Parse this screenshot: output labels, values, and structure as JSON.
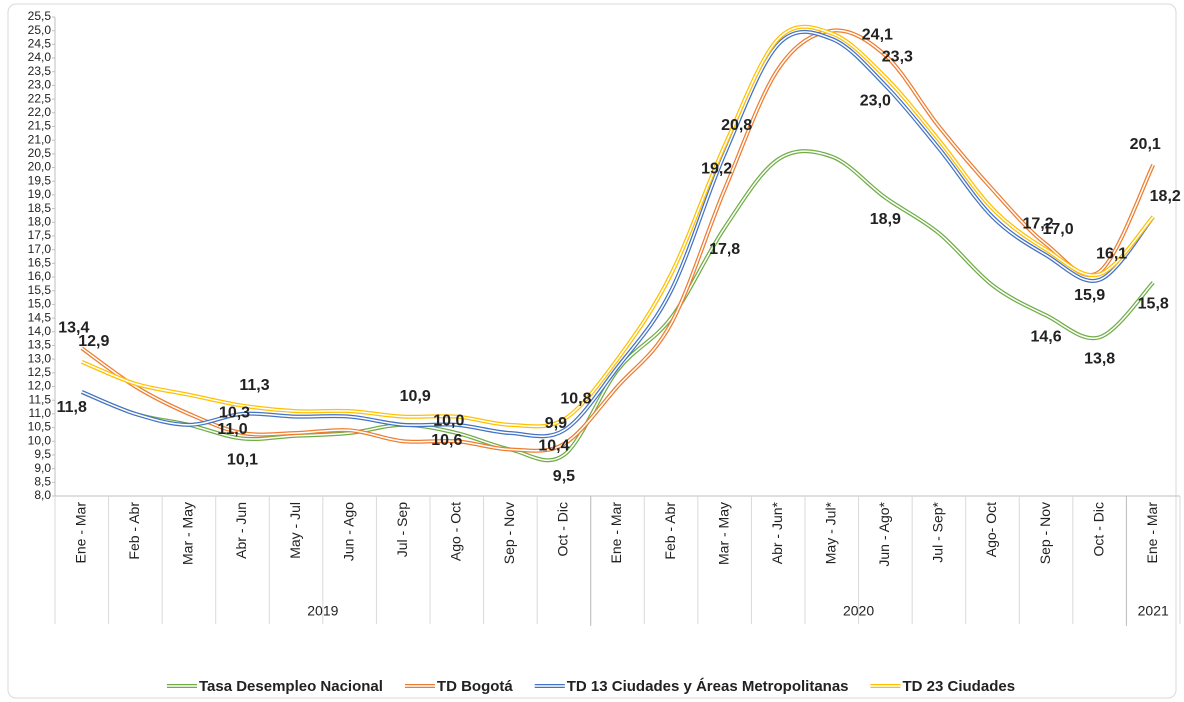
{
  "chart_data": {
    "type": "line",
    "categories": [
      "Ene - Mar",
      "Feb - Abr",
      "Mar - May",
      "Abr - Jun",
      "May - Jul",
      "Jun - Ago",
      "Jul - Sep",
      "Ago - Oct",
      "Sep - Nov",
      "Oct - Dic",
      "Ene - Mar",
      "Feb - Abr",
      "Mar - May",
      "Abr - Jun*",
      "May - Jul*",
      "Jun - Ago*",
      "Jul - Sep*",
      "Ago- Oct",
      "Sep - Nov",
      "Oct - Dic",
      "Ene - Mar"
    ],
    "x_groups": [
      {
        "name": "2019",
        "count": 10
      },
      {
        "name": "2020",
        "count": 10
      },
      {
        "name": "2021",
        "count": 1
      }
    ],
    "series": [
      {
        "name": "Tasa Desempleo Nacional",
        "color": "#70ad47",
        "label_color": "#548235",
        "values": [
          11.8,
          11.0,
          10.6,
          10.1,
          10.2,
          10.3,
          10.6,
          10.3,
          9.7,
          9.5,
          12.6,
          14.5,
          17.8,
          20.3,
          20.4,
          18.9,
          17.6,
          15.7,
          14.6,
          13.8,
          15.8
        ],
        "value_labels": [
          null,
          null,
          null,
          "10,1",
          null,
          null,
          null,
          null,
          null,
          "9,5",
          null,
          null,
          "17,8",
          null,
          null,
          "18,9",
          null,
          null,
          "14,6",
          "13,8",
          "15,8"
        ]
      },
      {
        "name": "TD Bogotá",
        "color": "#ed7d31",
        "label_color": "#ed7d31",
        "values": [
          13.4,
          12.0,
          11.0,
          10.3,
          10.3,
          10.4,
          10.0,
          10.0,
          9.7,
          9.9,
          12.0,
          14.3,
          19.2,
          23.6,
          25.0,
          24.1,
          21.5,
          19.2,
          17.2,
          16.2,
          20.1
        ],
        "value_labels": [
          "13,4",
          null,
          null,
          "10,3",
          null,
          null,
          null,
          "10,0",
          null,
          "9,9",
          null,
          null,
          "19,2",
          null,
          null,
          "24,1",
          null,
          null,
          "17,2",
          null,
          "20,1"
        ]
      },
      {
        "name": "TD 13 Ciudades y Áreas Metropolitanas",
        "color": "#4472c4",
        "label_color": "#2e75b6",
        "values": [
          11.8,
          11.0,
          10.6,
          11.0,
          10.9,
          10.9,
          10.6,
          10.6,
          10.3,
          10.4,
          12.7,
          15.5,
          20.5,
          24.5,
          24.7,
          23.0,
          20.7,
          18.2,
          16.8,
          15.9,
          18.2
        ],
        "value_labels": [
          "11,8",
          null,
          null,
          "11,0",
          null,
          null,
          null,
          "10,6",
          null,
          "10,4",
          null,
          null,
          null,
          null,
          null,
          "23,0",
          null,
          null,
          null,
          "15,9",
          null
        ]
      },
      {
        "name": "TD 23 Ciudades",
        "color": "#ffc000",
        "label_color": "#bf9000",
        "values": [
          12.9,
          12.1,
          11.7,
          11.3,
          11.1,
          11.1,
          10.9,
          10.9,
          10.6,
          10.8,
          13.0,
          16.1,
          20.8,
          24.7,
          24.9,
          23.3,
          21.0,
          18.5,
          17.0,
          16.1,
          18.2
        ],
        "value_labels": [
          "12,9",
          null,
          null,
          "11,3",
          null,
          null,
          "10,9",
          null,
          null,
          "10,8",
          null,
          null,
          "20,8",
          null,
          null,
          "23,3",
          null,
          null,
          "17,0",
          "16,1",
          "18,2"
        ]
      }
    ],
    "ylim": [
      8,
      25.5
    ],
    "yticks": [
      {
        "value": 8,
        "label": "8,0"
      },
      {
        "value": 8.5,
        "label": "8,5"
      },
      {
        "value": 9,
        "label": "9,0"
      },
      {
        "value": 9.5,
        "label": "9,5"
      },
      {
        "value": 10,
        "label": "10,0"
      },
      {
        "value": 10.5,
        "label": "10,5"
      },
      {
        "value": 11,
        "label": "11,0"
      },
      {
        "value": 11.5,
        "label": "11,5"
      },
      {
        "value": 12,
        "label": "12,0"
      },
      {
        "value": 12.5,
        "label": "12,5"
      },
      {
        "value": 13,
        "label": "13,0"
      },
      {
        "value": 13.5,
        "label": "13,5"
      },
      {
        "value": 14,
        "label": "14,0"
      },
      {
        "value": 14.5,
        "label": "14,5"
      },
      {
        "value": 15,
        "label": "15,0"
      },
      {
        "value": 15.5,
        "label": "15,5"
      },
      {
        "value": 16,
        "label": "16,0"
      },
      {
        "value": 16.5,
        "label": "16,5"
      },
      {
        "value": 17,
        "label": "17,0"
      },
      {
        "value": 17.5,
        "label": "17,5"
      },
      {
        "value": 18,
        "label": "18,0"
      },
      {
        "value": 18.5,
        "label": "18,5"
      },
      {
        "value": 19,
        "label": "19,0"
      },
      {
        "value": 19.5,
        "label": "19,5"
      },
      {
        "value": 20,
        "label": "20,0"
      },
      {
        "value": 20.5,
        "label": "20,5"
      },
      {
        "value": 21,
        "label": "21,0"
      },
      {
        "value": 21.5,
        "label": "21,5"
      },
      {
        "value": 22,
        "label": "22,0"
      },
      {
        "value": 22.5,
        "label": "22,5"
      },
      {
        "value": 23,
        "label": "23,0"
      },
      {
        "value": 23.5,
        "label": "23,5"
      },
      {
        "value": 24,
        "label": "24,0"
      },
      {
        "value": 24.5,
        "label": "24,5"
      },
      {
        "value": 25,
        "label": "25,0"
      },
      {
        "value": 25.5,
        "label": "25,5"
      }
    ],
    "grid": false,
    "legend": "bottom"
  }
}
